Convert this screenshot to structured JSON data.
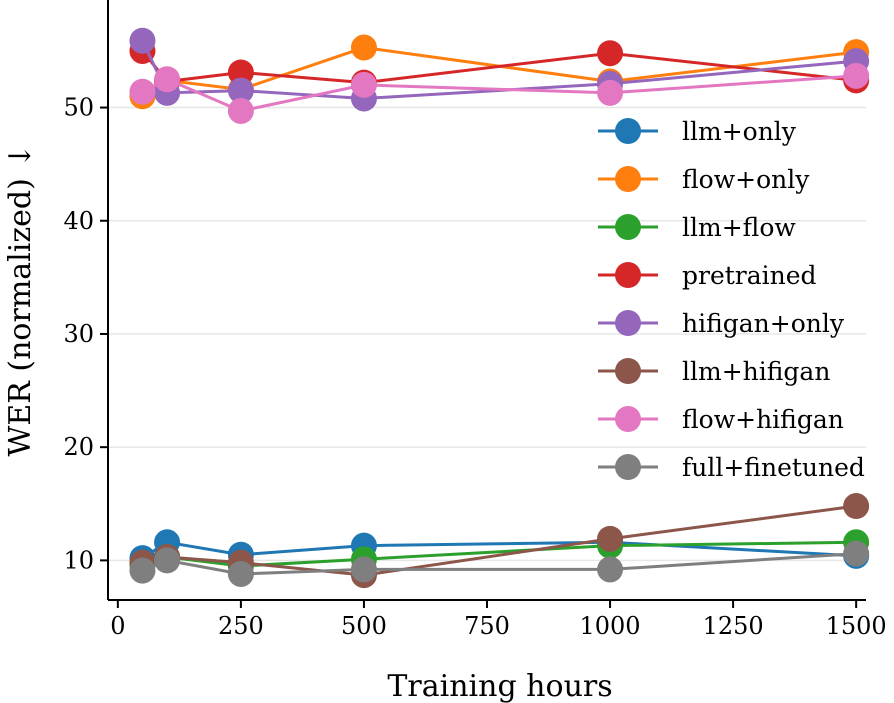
{
  "chart_data": {
    "type": "line",
    "title": "",
    "xlabel": "Training hours",
    "ylabel": "WER (normalized) ↓",
    "xlim": [
      -20,
      1520
    ],
    "ylim": [
      6.5,
      59.5
    ],
    "xticks": [
      0,
      250,
      500,
      750,
      1000,
      1250,
      1500
    ],
    "yticks": [
      10,
      20,
      30,
      40,
      50
    ],
    "grid": "horizontal",
    "legend_position": "right",
    "x": [
      50,
      100,
      250,
      500,
      1000,
      1500
    ],
    "series": [
      {
        "name": "llm+only",
        "color": "#1f77b4",
        "values": [
          10.2,
          11.6,
          10.5,
          11.3,
          11.6,
          10.4
        ]
      },
      {
        "name": "flow+only",
        "color": "#ff7f0e",
        "values": [
          51.0,
          52.4,
          51.6,
          55.3,
          52.3,
          54.9
        ]
      },
      {
        "name": "llm+flow",
        "color": "#2ca02c",
        "values": [
          9.6,
          10.3,
          9.5,
          10.1,
          11.3,
          11.6
        ]
      },
      {
        "name": "pretrained",
        "color": "#d62728",
        "values": [
          55.0,
          52.3,
          53.1,
          52.2,
          54.8,
          52.4
        ]
      },
      {
        "name": "hifigan+only",
        "color": "#9467bd",
        "values": [
          55.9,
          51.3,
          51.5,
          50.8,
          52.1,
          54.1
        ]
      },
      {
        "name": "llm+hifigan",
        "color": "#8c564b",
        "values": [
          9.8,
          10.3,
          9.8,
          8.7,
          11.9,
          14.8
        ]
      },
      {
        "name": "flow+hifigan",
        "color": "#e377c2",
        "values": [
          51.4,
          52.5,
          49.7,
          52.0,
          51.3,
          52.8
        ]
      },
      {
        "name": "full+finetuned",
        "color": "#7f7f7f",
        "values": [
          9.1,
          10.0,
          8.8,
          9.2,
          9.2,
          10.6
        ]
      }
    ]
  }
}
